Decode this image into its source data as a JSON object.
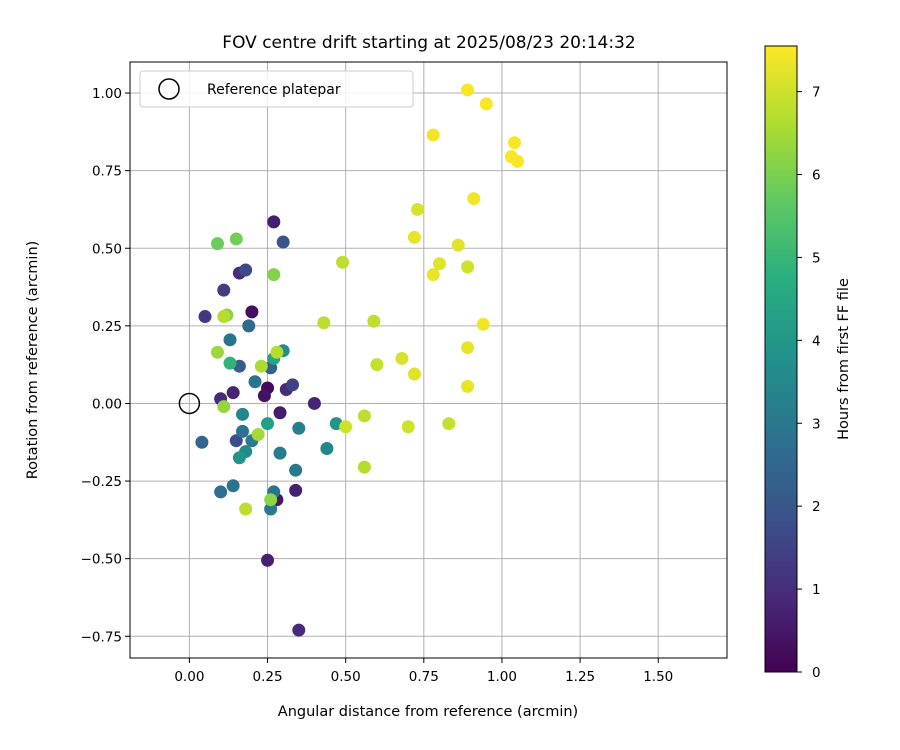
{
  "chart_data": {
    "type": "scatter",
    "title": "FOV centre drift starting at 2025/08/23 20:14:32",
    "xlabel": "Angular distance from reference (arcmin)",
    "ylabel": "Rotation from reference (arcmin)",
    "xlim": [
      -0.19,
      1.72
    ],
    "ylim": [
      -0.82,
      1.1
    ],
    "xticks": [
      "0.00",
      "0.25",
      "0.50",
      "0.75",
      "1.00",
      "1.25",
      "1.50"
    ],
    "yticks": [
      "−0.75",
      "−0.50",
      "−0.25",
      "0.00",
      "0.25",
      "0.50",
      "0.75",
      "1.00"
    ],
    "grid": true,
    "legend": {
      "location": "upper-left",
      "entries": [
        "Reference platepar"
      ]
    },
    "reference_point": {
      "x": 0.0,
      "y": 0.0,
      "marker": "open-circle"
    },
    "colorbar": {
      "label": "Hours from first FF file",
      "colormap": "viridis",
      "range": [
        0,
        7.55
      ],
      "ticks": [
        "0",
        "1",
        "2",
        "3",
        "4",
        "5",
        "6",
        "7"
      ]
    },
    "series": [
      {
        "points": [
          {
            "x": 0.27,
            "y": 0.585,
            "c": 0.6
          },
          {
            "x": 0.2,
            "y": 0.295,
            "c": 0.3
          },
          {
            "x": 0.05,
            "y": 0.28,
            "c": 1.2
          },
          {
            "x": 0.11,
            "y": 0.365,
            "c": 1.4
          },
          {
            "x": 0.16,
            "y": 0.42,
            "c": 1.0
          },
          {
            "x": 0.18,
            "y": 0.43,
            "c": 1.7
          },
          {
            "x": 0.3,
            "y": 0.52,
            "c": 2.0
          },
          {
            "x": 0.19,
            "y": 0.25,
            "c": 2.6
          },
          {
            "x": 0.13,
            "y": 0.205,
            "c": 2.9
          },
          {
            "x": 0.16,
            "y": 0.12,
            "c": 2.2
          },
          {
            "x": 0.25,
            "y": 0.05,
            "c": 0.2
          },
          {
            "x": 0.14,
            "y": 0.035,
            "c": 0.8
          },
          {
            "x": 0.1,
            "y": 0.015,
            "c": 0.9
          },
          {
            "x": 0.31,
            "y": 0.045,
            "c": 0.9
          },
          {
            "x": 0.33,
            "y": 0.06,
            "c": 1.5
          },
          {
            "x": 0.26,
            "y": 0.115,
            "c": 2.3
          },
          {
            "x": 0.24,
            "y": 0.025,
            "c": 0.4
          },
          {
            "x": 0.4,
            "y": 0.0,
            "c": 0.8
          },
          {
            "x": 0.29,
            "y": -0.03,
            "c": 0.6
          },
          {
            "x": 0.21,
            "y": 0.07,
            "c": 2.9
          },
          {
            "x": 0.3,
            "y": 0.17,
            "c": 3.7
          },
          {
            "x": 0.27,
            "y": 0.145,
            "c": 4.4
          },
          {
            "x": 0.04,
            "y": -0.125,
            "c": 2.5
          },
          {
            "x": 0.15,
            "y": -0.12,
            "c": 1.8
          },
          {
            "x": 0.17,
            "y": -0.035,
            "c": 3.4
          },
          {
            "x": 0.17,
            "y": -0.09,
            "c": 2.8
          },
          {
            "x": 0.2,
            "y": -0.12,
            "c": 3.1
          },
          {
            "x": 0.18,
            "y": -0.155,
            "c": 3.6
          },
          {
            "x": 0.16,
            "y": -0.175,
            "c": 3.9
          },
          {
            "x": 0.25,
            "y": -0.065,
            "c": 4.2
          },
          {
            "x": 0.29,
            "y": -0.16,
            "c": 3.1
          },
          {
            "x": 0.35,
            "y": -0.08,
            "c": 3.2
          },
          {
            "x": 0.34,
            "y": -0.215,
            "c": 3.0
          },
          {
            "x": 0.34,
            "y": -0.28,
            "c": 0.7
          },
          {
            "x": 0.28,
            "y": -0.31,
            "c": 0.5
          },
          {
            "x": 0.27,
            "y": -0.285,
            "c": 2.9
          },
          {
            "x": 0.26,
            "y": -0.34,
            "c": 3.0
          },
          {
            "x": 0.14,
            "y": -0.265,
            "c": 2.8
          },
          {
            "x": 0.1,
            "y": -0.285,
            "c": 2.7
          },
          {
            "x": 0.25,
            "y": -0.505,
            "c": 0.7
          },
          {
            "x": 0.35,
            "y": -0.73,
            "c": 0.9
          },
          {
            "x": 0.44,
            "y": -0.145,
            "c": 3.4
          },
          {
            "x": 0.47,
            "y": -0.065,
            "c": 3.9
          },
          {
            "x": 0.09,
            "y": 0.515,
            "c": 5.8
          },
          {
            "x": 0.15,
            "y": 0.53,
            "c": 5.9
          },
          {
            "x": 0.27,
            "y": 0.415,
            "c": 6.1
          },
          {
            "x": 0.12,
            "y": 0.285,
            "c": 6.2
          },
          {
            "x": 0.11,
            "y": 0.28,
            "c": 6.7
          },
          {
            "x": 0.09,
            "y": 0.165,
            "c": 6.4
          },
          {
            "x": 0.13,
            "y": 0.13,
            "c": 4.9
          },
          {
            "x": 0.23,
            "y": 0.12,
            "c": 6.6
          },
          {
            "x": 0.28,
            "y": 0.165,
            "c": 6.7
          },
          {
            "x": 0.11,
            "y": -0.01,
            "c": 6.3
          },
          {
            "x": 0.22,
            "y": -0.1,
            "c": 6.5
          },
          {
            "x": 0.26,
            "y": -0.31,
            "c": 6.2
          },
          {
            "x": 0.18,
            "y": -0.34,
            "c": 6.8
          },
          {
            "x": 0.49,
            "y": 0.455,
            "c": 6.8
          },
          {
            "x": 0.43,
            "y": 0.26,
            "c": 6.8
          },
          {
            "x": 0.59,
            "y": 0.265,
            "c": 6.8
          },
          {
            "x": 0.6,
            "y": 0.125,
            "c": 6.9
          },
          {
            "x": 0.5,
            "y": -0.075,
            "c": 7.0
          },
          {
            "x": 0.56,
            "y": -0.04,
            "c": 6.8
          },
          {
            "x": 0.56,
            "y": -0.205,
            "c": 6.7
          },
          {
            "x": 0.68,
            "y": 0.145,
            "c": 7.1
          },
          {
            "x": 0.72,
            "y": 0.095,
            "c": 7.2
          },
          {
            "x": 0.7,
            "y": -0.075,
            "c": 7.0
          },
          {
            "x": 0.83,
            "y": -0.065,
            "c": 6.9
          },
          {
            "x": 0.73,
            "y": 0.625,
            "c": 7.1
          },
          {
            "x": 0.72,
            "y": 0.535,
            "c": 7.3
          },
          {
            "x": 0.78,
            "y": 0.415,
            "c": 7.3
          },
          {
            "x": 0.8,
            "y": 0.45,
            "c": 7.2
          },
          {
            "x": 0.86,
            "y": 0.51,
            "c": 7.2
          },
          {
            "x": 0.89,
            "y": 0.44,
            "c": 7.0
          },
          {
            "x": 0.89,
            "y": 0.18,
            "c": 7.3
          },
          {
            "x": 0.89,
            "y": 0.055,
            "c": 7.3
          },
          {
            "x": 0.94,
            "y": 0.255,
            "c": 7.4
          },
          {
            "x": 0.91,
            "y": 0.66,
            "c": 7.4
          },
          {
            "x": 0.78,
            "y": 0.865,
            "c": 7.4
          },
          {
            "x": 0.89,
            "y": 1.01,
            "c": 7.5
          },
          {
            "x": 0.95,
            "y": 0.965,
            "c": 7.5
          },
          {
            "x": 1.04,
            "y": 0.84,
            "c": 7.5
          },
          {
            "x": 1.03,
            "y": 0.795,
            "c": 7.5
          },
          {
            "x": 1.05,
            "y": 0.78,
            "c": 7.5
          }
        ]
      }
    ]
  }
}
